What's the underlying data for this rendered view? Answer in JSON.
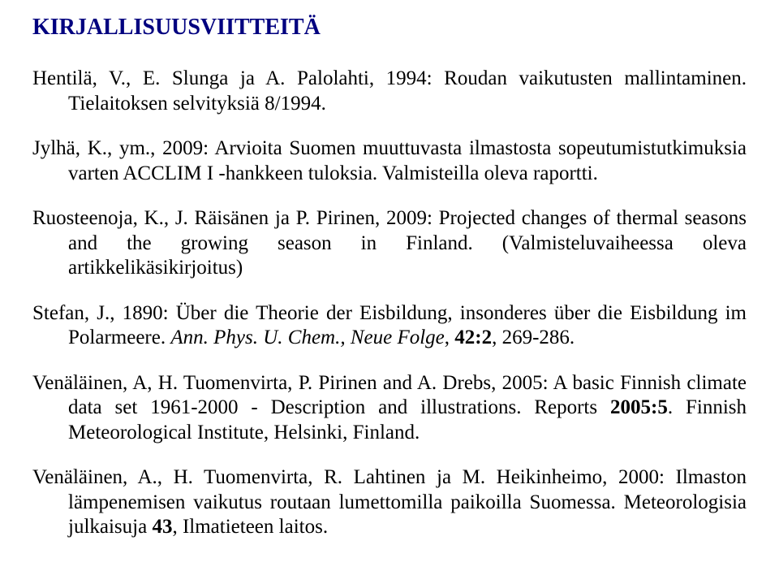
{
  "heading": "KIRJALLISUUSVIITTEITÄ",
  "colors": {
    "heading": "#00007f",
    "text": "#000000",
    "background": "#ffffff"
  },
  "typography": {
    "heading_fontsize": 28,
    "body_fontsize": 25,
    "heading_weight": "bold",
    "font_family": "Times New Roman"
  },
  "references": [
    {
      "segments": [
        {
          "t": "Hentilä, V., E. Slunga ja A. Palolahti, 1994: Roudan vaikutusten mallintaminen. Tielaitoksen selvityksiä 8/1994."
        }
      ]
    },
    {
      "segments": [
        {
          "t": "Jylhä, K., ym., 2009: Arvioita Suomen muuttuvasta ilmastosta sopeutumistutkimuksia varten ACCLIM I -hankkeen tuloksia. Valmisteilla oleva raportti."
        }
      ]
    },
    {
      "segments": [
        {
          "t": "Ruosteenoja, K., J. Räisänen ja P. Pirinen, 2009: Projected changes of thermal seasons and the growing season in Finland. (Valmisteluvaiheessa oleva artikkelikäsikirjoitus)"
        }
      ]
    },
    {
      "segments": [
        {
          "t": "Stefan, J., 1890: Über die Theorie der Eisbildung, insonderes über die Eisbildung im Polarmeere. "
        },
        {
          "t": "Ann. Phys. U. Chem., Neue Folge",
          "style": "italic"
        },
        {
          "t": ", "
        },
        {
          "t": "42:2",
          "style": "bold"
        },
        {
          "t": ", 269-286."
        }
      ]
    },
    {
      "segments": [
        {
          "t": "Venäläinen, A, H. Tuomenvirta, P. Pirinen and A. Drebs, 2005: A basic Finnish climate data set 1961-2000 - Description and illustrations. Reports "
        },
        {
          "t": "2005:5",
          "style": "bold"
        },
        {
          "t": ". Finnish Meteorological Institute, Helsinki, Finland."
        }
      ]
    },
    {
      "segments": [
        {
          "t": "Venäläinen, A., H. Tuomenvirta, R. Lahtinen ja M. Heikinheimo, 2000: Ilmaston lämpenemisen vaikutus routaan lumettomilla paikoilla Suomessa. Meteorologisia julkaisuja "
        },
        {
          "t": "43",
          "style": "bold"
        },
        {
          "t": ", Ilmatieteen laitos."
        }
      ]
    }
  ]
}
